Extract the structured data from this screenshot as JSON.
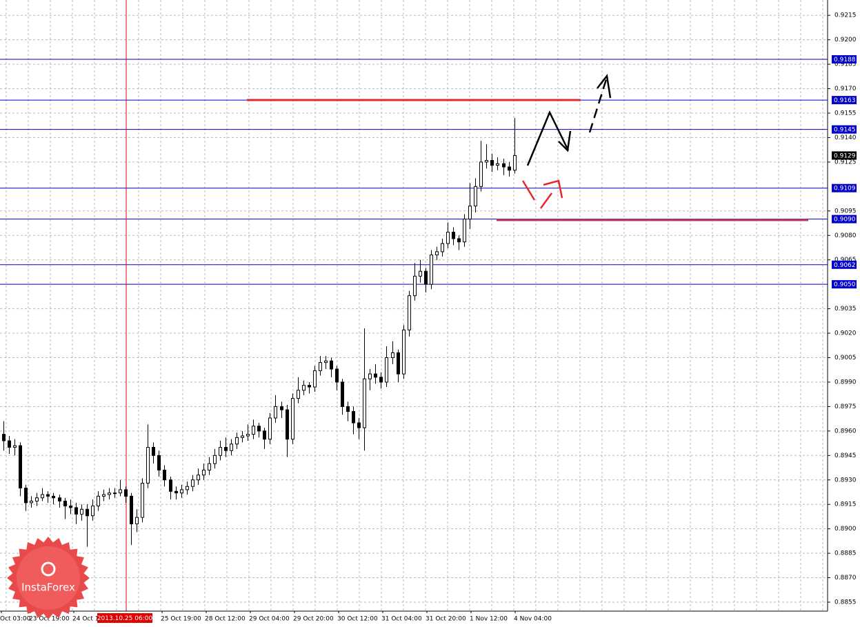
{
  "chart_data": {
    "type": "candlestick",
    "candles": [
      [
        0.8958,
        0.8966,
        0.8948,
        0.8954
      ],
      [
        0.8954,
        0.8957,
        0.8946,
        0.895
      ],
      [
        0.895,
        0.8955,
        0.8945,
        0.8951
      ],
      [
        0.8951,
        0.8953,
        0.892,
        0.8925
      ],
      [
        0.8925,
        0.8927,
        0.8911,
        0.8916
      ],
      [
        0.8916,
        0.892,
        0.8913,
        0.8917
      ],
      [
        0.8917,
        0.8922,
        0.8914,
        0.8919
      ],
      [
        0.8919,
        0.8925,
        0.8917,
        0.8921
      ],
      [
        0.8921,
        0.8923,
        0.8916,
        0.892
      ],
      [
        0.892,
        0.8922,
        0.8915,
        0.8919
      ],
      [
        0.8919,
        0.8921,
        0.8913,
        0.8917
      ],
      [
        0.8917,
        0.8919,
        0.8906,
        0.8914
      ],
      [
        0.8914,
        0.8918,
        0.8909,
        0.8913
      ],
      [
        0.8913,
        0.8916,
        0.8903,
        0.8909
      ],
      [
        0.8909,
        0.8915,
        0.8905,
        0.8912
      ],
      [
        0.8912,
        0.8915,
        0.8889,
        0.8908
      ],
      [
        0.8908,
        0.8918,
        0.8905,
        0.8914
      ],
      [
        0.8914,
        0.8923,
        0.8911,
        0.892
      ],
      [
        0.892,
        0.8924,
        0.8917,
        0.8921
      ],
      [
        0.8921,
        0.8925,
        0.8918,
        0.8922
      ],
      [
        0.8922,
        0.8925,
        0.8919,
        0.8922
      ],
      [
        0.8922,
        0.893,
        0.892,
        0.8924
      ],
      [
        0.8924,
        0.8926,
        0.8916,
        0.892
      ],
      [
        0.892,
        0.8922,
        0.889,
        0.8903
      ],
      [
        0.8903,
        0.8912,
        0.8898,
        0.8907
      ],
      [
        0.8907,
        0.8931,
        0.8904,
        0.8928
      ],
      [
        0.8928,
        0.8964,
        0.8925,
        0.895
      ],
      [
        0.895,
        0.8953,
        0.894,
        0.8945
      ],
      [
        0.8945,
        0.8948,
        0.8932,
        0.8936
      ],
      [
        0.8936,
        0.8939,
        0.8926,
        0.893
      ],
      [
        0.893,
        0.8932,
        0.8918,
        0.8923
      ],
      [
        0.8923,
        0.8926,
        0.8918,
        0.8922
      ],
      [
        0.8922,
        0.8927,
        0.8919,
        0.8924
      ],
      [
        0.8924,
        0.8929,
        0.8921,
        0.8926
      ],
      [
        0.8926,
        0.8933,
        0.8923,
        0.893
      ],
      [
        0.893,
        0.8937,
        0.8927,
        0.8933
      ],
      [
        0.8933,
        0.894,
        0.893,
        0.8936
      ],
      [
        0.8936,
        0.8944,
        0.8933,
        0.894
      ],
      [
        0.894,
        0.8949,
        0.8937,
        0.8945
      ],
      [
        0.8945,
        0.8954,
        0.8942,
        0.895
      ],
      [
        0.895,
        0.8956,
        0.8944,
        0.8948
      ],
      [
        0.8948,
        0.8955,
        0.8945,
        0.8952
      ],
      [
        0.8952,
        0.8959,
        0.8949,
        0.8956
      ],
      [
        0.8956,
        0.896,
        0.8953,
        0.8957
      ],
      [
        0.8957,
        0.8964,
        0.8954,
        0.8958
      ],
      [
        0.8958,
        0.8967,
        0.8955,
        0.8963
      ],
      [
        0.8963,
        0.8965,
        0.8956,
        0.896
      ],
      [
        0.896,
        0.8962,
        0.8949,
        0.8955
      ],
      [
        0.8955,
        0.8971,
        0.8952,
        0.8968
      ],
      [
        0.8968,
        0.8982,
        0.8965,
        0.8975
      ],
      [
        0.8975,
        0.8978,
        0.8968,
        0.8973
      ],
      [
        0.8973,
        0.8976,
        0.8944,
        0.8955
      ],
      [
        0.8955,
        0.8983,
        0.8952,
        0.898
      ],
      [
        0.898,
        0.8993,
        0.8977,
        0.8985
      ],
      [
        0.8985,
        0.8991,
        0.8982,
        0.8988
      ],
      [
        0.8988,
        0.899,
        0.8983,
        0.8987
      ],
      [
        0.8987,
        0.9,
        0.8984,
        0.8997
      ],
      [
        0.8997,
        0.9006,
        0.8994,
        0.9002
      ],
      [
        0.9002,
        0.9006,
        0.8998,
        0.9003
      ],
      [
        0.9003,
        0.9005,
        0.8993,
        0.8998
      ],
      [
        0.8998,
        0.9,
        0.8985,
        0.899
      ],
      [
        0.899,
        0.8992,
        0.897,
        0.8975
      ],
      [
        0.8975,
        0.8978,
        0.8966,
        0.8972
      ],
      [
        0.8972,
        0.8975,
        0.8958,
        0.8965
      ],
      [
        0.8965,
        0.8968,
        0.8955,
        0.8962
      ],
      [
        0.8962,
        0.9023,
        0.8948,
        0.8992
      ],
      [
        0.8992,
        0.8998,
        0.8985,
        0.8995
      ],
      [
        0.8995,
        0.9001,
        0.8989,
        0.8993
      ],
      [
        0.8993,
        0.8996,
        0.8986,
        0.899
      ],
      [
        0.899,
        0.9012,
        0.8987,
        0.9005
      ],
      [
        0.9005,
        0.9015,
        0.9001,
        0.9008
      ],
      [
        0.9008,
        0.901,
        0.899,
        0.8995
      ],
      [
        0.8995,
        0.9025,
        0.8992,
        0.9022
      ],
      [
        0.9022,
        0.9046,
        0.9018,
        0.9043
      ],
      [
        0.9043,
        0.9063,
        0.904,
        0.9055
      ],
      [
        0.9055,
        0.9065,
        0.9051,
        0.9058
      ],
      [
        0.9058,
        0.906,
        0.9045,
        0.905
      ],
      [
        0.905,
        0.9071,
        0.9047,
        0.9068
      ],
      [
        0.9068,
        0.9073,
        0.9065,
        0.907
      ],
      [
        0.907,
        0.9078,
        0.9067,
        0.9075
      ],
      [
        0.9075,
        0.9088,
        0.9072,
        0.9082
      ],
      [
        0.9082,
        0.9085,
        0.9074,
        0.9078
      ],
      [
        0.9078,
        0.908,
        0.9071,
        0.9076
      ],
      [
        0.9076,
        0.9093,
        0.9073,
        0.909
      ],
      [
        0.909,
        0.9112,
        0.9084,
        0.9098
      ],
      [
        0.9098,
        0.9115,
        0.9094,
        0.911
      ],
      [
        0.911,
        0.9138,
        0.9107,
        0.9125
      ],
      [
        0.9125,
        0.9136,
        0.9121,
        0.9126
      ],
      [
        0.9126,
        0.913,
        0.9119,
        0.9123
      ],
      [
        0.9123,
        0.9128,
        0.912,
        0.9124
      ],
      [
        0.9124,
        0.9127,
        0.9117,
        0.9122
      ],
      [
        0.9122,
        0.9125,
        0.9116,
        0.912
      ],
      [
        0.912,
        0.9152,
        0.9118,
        0.9129
      ]
    ],
    "ylim": [
      0.88495,
      0.92244
    ],
    "yticks": [
      0.9215,
      {
        "value": 0.92,
        "label": "0.9200"
      },
      0.9185,
      {
        "value": 0.917,
        "label": "0.9170"
      },
      0.9155,
      {
        "value": 0.914,
        "label": "0.9140"
      },
      0.9125,
      0.9095,
      {
        "value": 0.908,
        "label": "0.9080"
      },
      0.9065,
      0.9035,
      {
        "value": 0.902,
        "label": "0.9020"
      },
      0.9005,
      {
        "value": 0.899,
        "label": "0.8990"
      },
      0.8975,
      {
        "value": 0.896,
        "label": "0.8960"
      },
      0.8945,
      {
        "value": 0.893,
        "label": "0.8930"
      },
      0.8915,
      {
        "value": 0.89,
        "label": "0.8900"
      },
      0.8885,
      {
        "value": 0.887,
        "label": "0.8870"
      },
      0.8855
    ],
    "levels": [
      0.9188,
      0.9163,
      0.9145,
      0.9109,
      {
        "value": 0.909,
        "label": "0.9090"
      },
      0.9062,
      {
        "value": 0.905,
        "label": "0.9050"
      }
    ],
    "current": 0.9129,
    "xlabels": [
      "Oct 03:00",
      "23 Oct 19:00",
      "24 Oct 1",
      "25 Oct 19:00",
      "28 Oct 12:00",
      "29 Oct 04:00",
      "29 Oct 20:00",
      "30 Oct 12:00",
      "31 Oct 04:00",
      "31 Oct 20:00",
      "1 Nov 12:00",
      "4 Nov 04:00"
    ],
    "marker_label": "2013.10.25 06:00",
    "logo": "InstaForex",
    "grid": true
  }
}
